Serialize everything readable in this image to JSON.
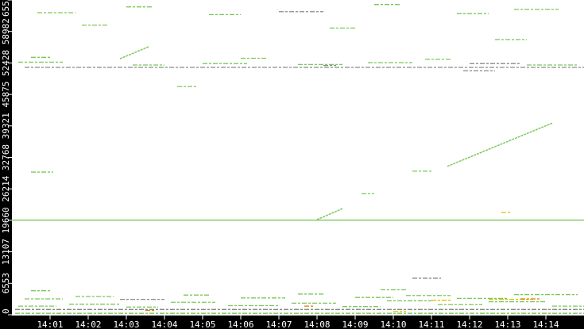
{
  "chart_data": {
    "type": "scatter",
    "title": "",
    "xlabel": "",
    "ylabel": "",
    "xlim": [
      "14:00:00",
      "14:15:00"
    ],
    "ylim": [
      0,
      65536
    ],
    "x_ticks": [
      "14:01",
      "14:02",
      "14:03",
      "14:04",
      "14:05",
      "14:06",
      "14:07",
      "14:08",
      "14:09",
      "14:10",
      "14:11",
      "14:12",
      "14:13",
      "14:14"
    ],
    "y_ticks": [
      "0",
      "6553",
      "13107",
      "19660",
      "26214",
      "32768",
      "39321",
      "45875",
      "52428",
      "58982",
      "65536"
    ],
    "grid": false,
    "colors": {
      "background": "#ffffff",
      "frame": "#000000",
      "green": "#7cc85a",
      "gray": "#8a8a8a",
      "orange": "#e07a00",
      "yellow": "#d8c400"
    },
    "horizontal_segments": [
      [
        "14:00:00",
        "14:15:00",
        19700,
        "green"
      ],
      [
        "14:00:30",
        "14:01:05",
        29700,
        "green"
      ],
      [
        "14:10:30",
        "14:11:00",
        29900,
        "green"
      ],
      [
        "14:09:10",
        "14:09:30",
        25200,
        "green"
      ],
      [
        "14:10:30",
        "14:11:15",
        7600,
        "gray"
      ],
      [
        "14:12:50",
        "14:13:05",
        21300,
        "yellow"
      ],
      [
        "14:11:50",
        "14:12:40",
        50800,
        "gray"
      ],
      [
        "14:04:20",
        "14:04:50",
        47500,
        "green"
      ],
      [
        "14:08:10",
        "14:08:30",
        51900,
        "gray"
      ],
      [
        "14:00:20",
        "14:15:00",
        51500,
        "gray"
      ],
      [
        "14:00:10",
        "14:01:20",
        52600,
        "green"
      ],
      [
        "14:03:10",
        "14:04:00",
        52000,
        "green"
      ],
      [
        "14:05:00",
        "14:06:10",
        52300,
        "green"
      ],
      [
        "14:07:30",
        "14:08:40",
        52100,
        "green"
      ],
      [
        "14:09:20",
        "14:10:30",
        52500,
        "green"
      ],
      [
        "14:12:00",
        "14:13:20",
        52300,
        "gray"
      ],
      [
        "14:13:30",
        "14:14:50",
        52000,
        "green"
      ],
      [
        "14:00:30",
        "14:01:00",
        53600,
        "green"
      ],
      [
        "14:06:00",
        "14:06:40",
        53400,
        "green"
      ],
      [
        "14:10:50",
        "14:11:30",
        53200,
        "green"
      ],
      [
        "14:00:40",
        "14:01:40",
        62900,
        "green"
      ],
      [
        "14:03:00",
        "14:03:40",
        64100,
        "green"
      ],
      [
        "14:05:10",
        "14:06:00",
        62500,
        "green"
      ],
      [
        "14:07:00",
        "14:08:10",
        63100,
        "gray"
      ],
      [
        "14:09:30",
        "14:10:10",
        64600,
        "green"
      ],
      [
        "14:11:40",
        "14:12:30",
        62700,
        "green"
      ],
      [
        "14:13:10",
        "14:14:20",
        63600,
        "green"
      ],
      [
        "14:01:50",
        "14:02:30",
        60300,
        "green"
      ],
      [
        "14:08:20",
        "14:09:00",
        59700,
        "green"
      ],
      [
        "14:12:40",
        "14:13:30",
        57300,
        "green"
      ],
      [
        "14:00:05",
        "14:15:00",
        300,
        "green"
      ],
      [
        "14:00:05",
        "14:15:00",
        1100,
        "gray"
      ],
      [
        "14:00:10",
        "14:01:10",
        1800,
        "green"
      ],
      [
        "14:01:30",
        "14:02:50",
        2200,
        "green"
      ],
      [
        "14:03:00",
        "14:03:50",
        1600,
        "green"
      ],
      [
        "14:04:10",
        "14:05:20",
        2600,
        "green"
      ],
      [
        "14:05:40",
        "14:07:00",
        1900,
        "green"
      ],
      [
        "14:07:20",
        "14:08:30",
        2400,
        "green"
      ],
      [
        "14:08:40",
        "14:09:40",
        1700,
        "green"
      ],
      [
        "14:09:50",
        "14:11:00",
        2900,
        "green"
      ],
      [
        "14:11:10",
        "14:12:20",
        2100,
        "green"
      ],
      [
        "14:12:30",
        "14:14:00",
        2700,
        "green"
      ],
      [
        "14:14:10",
        "14:15:00",
        1800,
        "green"
      ],
      [
        "14:00:20",
        "14:01:20",
        3300,
        "green"
      ],
      [
        "14:01:40",
        "14:02:40",
        3800,
        "green"
      ],
      [
        "14:02:50",
        "14:04:00",
        3200,
        "gray"
      ],
      [
        "14:04:30",
        "14:05:10",
        4100,
        "green"
      ],
      [
        "14:06:00",
        "14:07:10",
        3500,
        "green"
      ],
      [
        "14:07:30",
        "14:08:10",
        4300,
        "green"
      ],
      [
        "14:09:00",
        "14:10:00",
        3600,
        "green"
      ],
      [
        "14:10:20",
        "14:11:30",
        4000,
        "green"
      ],
      [
        "14:11:40",
        "14:13:00",
        3400,
        "green"
      ],
      [
        "14:13:10",
        "14:14:50",
        4200,
        "green"
      ],
      [
        "14:11:00",
        "14:11:30",
        3000,
        "yellow"
      ],
      [
        "14:12:30",
        "14:13:40",
        3200,
        "yellow"
      ],
      [
        "14:03:30",
        "14:03:45",
        900,
        "orange"
      ],
      [
        "14:07:40",
        "14:07:55",
        1800,
        "orange"
      ],
      [
        "14:10:00",
        "14:10:20",
        700,
        "yellow"
      ],
      [
        "14:13:20",
        "14:13:50",
        3300,
        "orange"
      ],
      [
        "14:00:30",
        "14:01:00",
        5000,
        "green"
      ],
      [
        "14:09:40",
        "14:10:20",
        5200,
        "green"
      ]
    ],
    "diagonal_segments": [
      [
        "14:02:50",
        53300,
        "14:03:35",
        55800,
        "green"
      ],
      [
        "14:08:00",
        19800,
        "14:08:40",
        22100,
        "green"
      ],
      [
        "14:11:25",
        30900,
        "14:14:10",
        39900,
        "green"
      ]
    ]
  }
}
